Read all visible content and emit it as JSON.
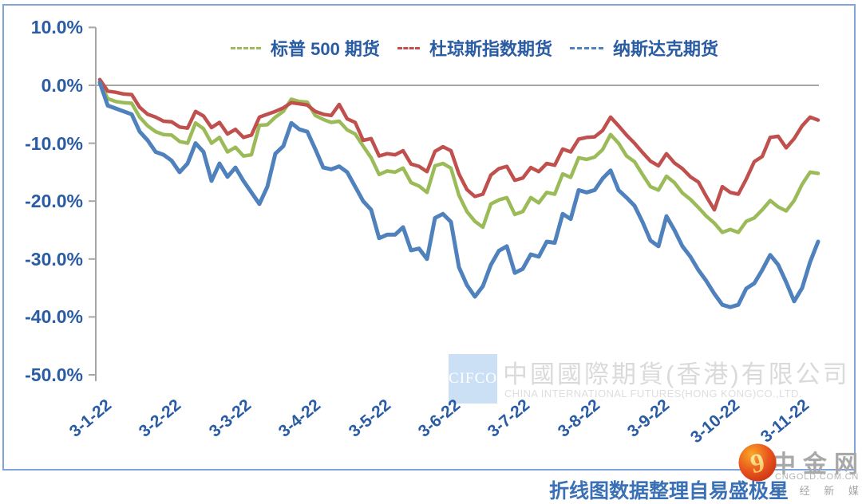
{
  "frame": {
    "border_color": "#7EA4D9"
  },
  "chart_data": {
    "type": "line",
    "title": "",
    "xlabel": "",
    "ylabel": "",
    "x_labels": [
      "3-1-22",
      "3-2-22",
      "3-3-22",
      "3-4-22",
      "3-5-22",
      "3-6-22",
      "3-7-22",
      "3-8-22",
      "3-9-22",
      "3-10-22",
      "3-11-22"
    ],
    "y_tick_labels": [
      "10.0%",
      "0.0%",
      "-10.0%",
      "-20.0%",
      "-30.0%",
      "-40.0%",
      "-50.0%"
    ],
    "y_tick_values": [
      10,
      0,
      -10,
      -20,
      -30,
      -40,
      -50
    ],
    "ylim": [
      -50,
      10
    ],
    "y_unit": "percent",
    "grid": "zero-line-only",
    "legend_position": "top-center",
    "axis_color": "#A6A6A6",
    "note": "values are evenly spaced intraday readings from 3-1-22 through 3-11-22",
    "series": [
      {
        "name": "标普 500 期货",
        "color": "#9BBB59",
        "values": [
          0.5,
          -2.3,
          -2.8,
          -3.0,
          -3.1,
          -5.5,
          -7.0,
          -8.0,
          -8.5,
          -8.6,
          -9.7,
          -10.0,
          -6.5,
          -7.5,
          -10.0,
          -9.0,
          -11.5,
          -10.7,
          -12.2,
          -12.0,
          -6.9,
          -6.8,
          -5.5,
          -4.5,
          -2.4,
          -2.8,
          -2.9,
          -5.2,
          -5.9,
          -6.4,
          -6.2,
          -7.7,
          -8.4,
          -10.5,
          -12.5,
          -15.4,
          -14.8,
          -15.0,
          -14.3,
          -16.8,
          -17.4,
          -18.5,
          -13.9,
          -13.5,
          -14.3,
          -19.0,
          -21.8,
          -23.5,
          -24.5,
          -20.5,
          -19.8,
          -19.4,
          -22.3,
          -21.8,
          -19.4,
          -20.3,
          -18.5,
          -18.8,
          -15.3,
          -15.9,
          -12.5,
          -12.8,
          -12.4,
          -11.1,
          -8.5,
          -10.0,
          -12.2,
          -13.2,
          -15.4,
          -17.5,
          -18.1,
          -15.7,
          -16.8,
          -18.6,
          -19.7,
          -21.1,
          -22.6,
          -23.8,
          -25.4,
          -24.9,
          -25.4,
          -23.5,
          -22.9,
          -21.5,
          -19.9,
          -21.0,
          -21.7,
          -19.9,
          -17.1,
          -15.0,
          -15.2
        ]
      },
      {
        "name": "杜琼斯指数期货",
        "color": "#C0504D",
        "values": [
          1.0,
          -1.0,
          -1.2,
          -1.5,
          -1.6,
          -3.8,
          -5.0,
          -5.5,
          -6.2,
          -6.3,
          -7.2,
          -7.4,
          -4.5,
          -5.3,
          -7.3,
          -6.4,
          -8.4,
          -7.6,
          -9.0,
          -8.6,
          -5.5,
          -5.0,
          -4.5,
          -3.9,
          -3.0,
          -3.2,
          -3.4,
          -4.5,
          -5.0,
          -5.2,
          -3.3,
          -5.8,
          -6.4,
          -9.5,
          -9.2,
          -12.2,
          -11.8,
          -12.0,
          -11.3,
          -13.6,
          -14.0,
          -14.9,
          -11.4,
          -10.6,
          -11.3,
          -15.3,
          -18.0,
          -19.2,
          -18.8,
          -15.5,
          -14.4,
          -14.0,
          -16.4,
          -16.0,
          -14.2,
          -14.9,
          -13.5,
          -13.8,
          -11.0,
          -11.5,
          -9.3,
          -9.0,
          -8.9,
          -7.8,
          -5.5,
          -7.0,
          -8.6,
          -10.0,
          -11.6,
          -13.1,
          -13.9,
          -11.8,
          -13.4,
          -14.4,
          -15.8,
          -16.7,
          -19.2,
          -21.5,
          -17.5,
          -18.5,
          -18.8,
          -16.2,
          -13.2,
          -12.3,
          -9.0,
          -8.8,
          -10.8,
          -9.2,
          -7.0,
          -5.5,
          -6.0
        ]
      },
      {
        "name": "纳斯达克期货",
        "color": "#4F81BD",
        "values": [
          0.5,
          -3.5,
          -4.0,
          -4.5,
          -5.0,
          -8.0,
          -9.5,
          -11.5,
          -12.0,
          -13.0,
          -15.0,
          -13.5,
          -10.0,
          -11.5,
          -16.5,
          -13.5,
          -15.8,
          -14.2,
          -16.5,
          -18.5,
          -20.5,
          -17.5,
          -11.8,
          -10.5,
          -6.5,
          -7.6,
          -8.0,
          -11.0,
          -14.2,
          -14.5,
          -14.0,
          -15.0,
          -17.5,
          -20.0,
          -21.5,
          -26.4,
          -25.8,
          -25.8,
          -24.5,
          -28.5,
          -28.2,
          -30.0,
          -22.9,
          -22.2,
          -23.6,
          -31.4,
          -34.5,
          -36.5,
          -34.7,
          -31.0,
          -28.6,
          -27.8,
          -32.4,
          -31.7,
          -29.2,
          -29.6,
          -27.0,
          -27.2,
          -22.2,
          -23.1,
          -18.1,
          -18.5,
          -18.1,
          -16.1,
          -14.7,
          -18.1,
          -19.4,
          -20.8,
          -23.6,
          -26.8,
          -27.8,
          -22.6,
          -25.0,
          -27.8,
          -29.6,
          -31.9,
          -33.8,
          -36.0,
          -37.9,
          -38.3,
          -37.9,
          -35.1,
          -34.2,
          -31.9,
          -29.3,
          -31.0,
          -34.0,
          -37.3,
          -35.0,
          -30.5,
          -27.0
        ]
      }
    ]
  },
  "watermark": {
    "logo_text": "CIFCO",
    "company_cn": "中國國際期貨(香港)有限公司",
    "company_en": "CHINA INTERNATIONAL FUTURES(HONG KONG)CO.,LTD."
  },
  "caption": {
    "text": "折线图数据整理自易盛极星"
  },
  "brand": {
    "name_cn": "中金网",
    "domain": "CNGOLD.COM.CN",
    "tagline": "财 经 新 媒 体",
    "logo_glyph": "9"
  }
}
